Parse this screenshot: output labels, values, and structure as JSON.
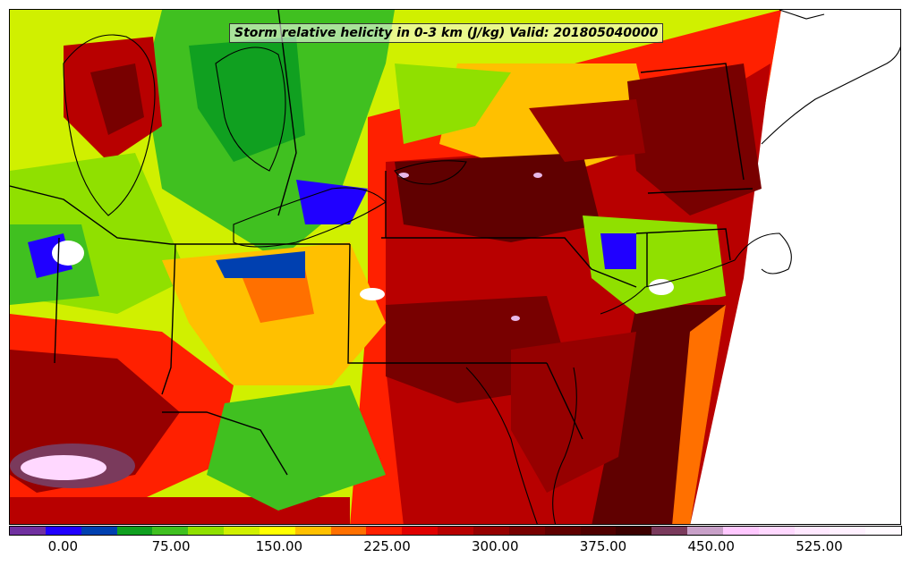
{
  "title": "Storm relative helicity in 0-3 km (J/kg) Valid: 201805040000",
  "colorbar": {
    "colors": [
      "#7030a0",
      "#2000ff",
      "#0040b0",
      "#10a020",
      "#40c020",
      "#90e000",
      "#d0f000",
      "#ffff00",
      "#ffc000",
      "#ff7000",
      "#ff2000",
      "#e00000",
      "#b80000",
      "#960000",
      "#780000",
      "#600000",
      "#500000",
      "#3c0000",
      "#7a3a5c",
      "#c8a0c8",
      "#ffc8ff",
      "#ffd8ff",
      "#ffe8ff",
      "#fff0ff",
      "#fffaff"
    ],
    "tick_values": [
      0,
      75,
      150,
      225,
      300,
      375,
      450,
      525
    ],
    "tick_labels": [
      "0.00",
      "75.00",
      "150.00",
      "225.00",
      "300.00",
      "375.00",
      "450.00",
      "525.00"
    ],
    "range": [
      -37.5,
      582.5
    ]
  },
  "map": {
    "field": "Storm relative helicity in 0-3 km",
    "units": "J/kg",
    "valid": "201805040000",
    "region_colors": {
      "high": "#8b0000",
      "very_high": "#5a0000",
      "moderate": "#ff2000",
      "medium": "#ffc000",
      "low": "#d0f000",
      "lower": "#40c020",
      "negative": "#2000ff",
      "extreme": "#e8b8e8",
      "missing": "#ffffff"
    }
  }
}
